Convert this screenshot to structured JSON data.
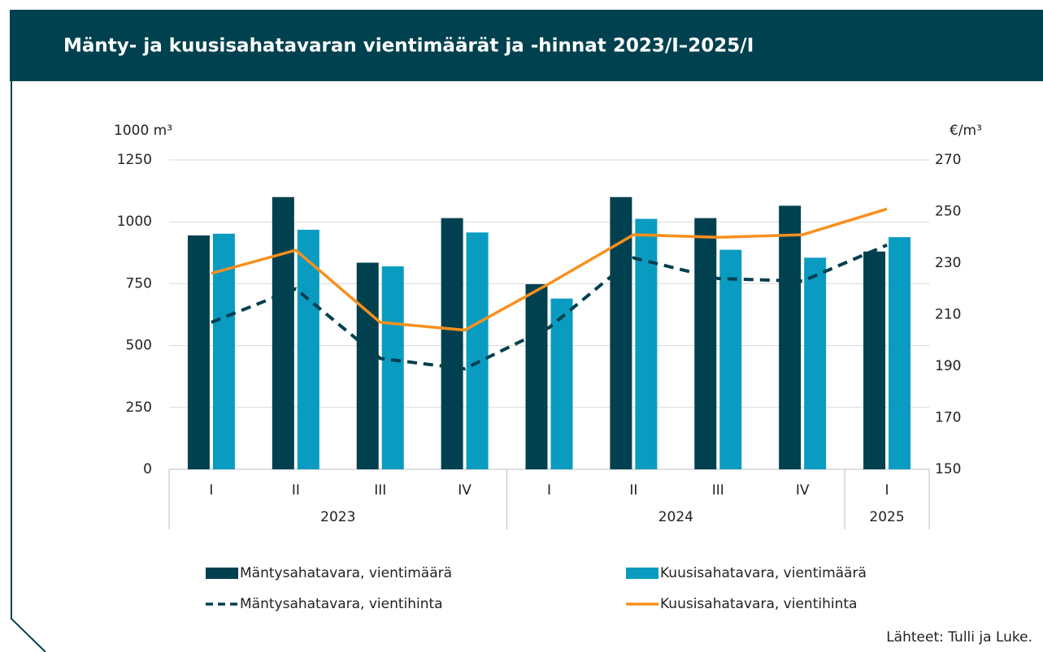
{
  "chart_data": {
    "type": "bar_line",
    "title": "Mänty- ja kuusisahatavaran vientimäärät ja -hinnat 2023/I–2025/I",
    "y_label": "1000 m³",
    "y2_label": "€/m³",
    "source": "Lähteet:  Tulli ja Luke.",
    "categories": [
      "I",
      "II",
      "III",
      "IV",
      "I",
      "II",
      "III",
      "IV",
      "I"
    ],
    "x_groups": [
      {
        "label": "2023",
        "count": 4
      },
      {
        "label": "2024",
        "count": 4
      },
      {
        "label": "2025",
        "count": 1
      }
    ],
    "ylim": [
      0,
      1250
    ],
    "yticks": [
      0,
      250,
      500,
      750,
      1000,
      1250
    ],
    "y2lim": [
      150,
      270
    ],
    "y2ticks": [
      150,
      170,
      190,
      210,
      230,
      250,
      270
    ],
    "grid": true,
    "series": [
      {
        "name": "Mäntysahatavara, vientimäärä",
        "type": "bar",
        "color": "#00404f",
        "values": [
          945,
          1100,
          835,
          1015,
          748,
          1100,
          1015,
          1065,
          880
        ]
      },
      {
        "name": "Kuusisahatavara, vientimäärä",
        "type": "bar",
        "color": "#0a9bc1",
        "values": [
          952,
          968,
          820,
          957,
          690,
          1012,
          887,
          855,
          938
        ]
      },
      {
        "name": "Mäntysahatavara, vientihinta",
        "type": "line",
        "dashed": true,
        "axis": "y2",
        "color": "#00404f",
        "values": [
          207,
          220,
          193,
          189,
          205,
          232,
          224,
          223,
          237
        ]
      },
      {
        "name": "Kuusisahatavara, vientihinta",
        "type": "line",
        "dashed": false,
        "axis": "y2",
        "color": "#f7901e",
        "values": [
          226,
          235,
          207,
          204,
          222,
          241,
          240,
          241,
          251
        ]
      }
    ]
  }
}
